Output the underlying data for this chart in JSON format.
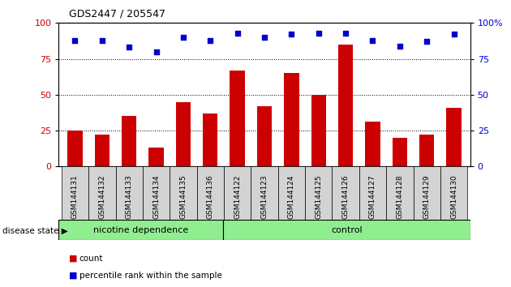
{
  "title": "GDS2447 / 205547",
  "categories": [
    "GSM144131",
    "GSM144132",
    "GSM144133",
    "GSM144134",
    "GSM144135",
    "GSM144136",
    "GSM144122",
    "GSM144123",
    "GSM144124",
    "GSM144125",
    "GSM144126",
    "GSM144127",
    "GSM144128",
    "GSM144129",
    "GSM144130"
  ],
  "counts": [
    25,
    22,
    35,
    13,
    45,
    37,
    67,
    42,
    65,
    50,
    85,
    31,
    20,
    22,
    41
  ],
  "percentiles": [
    88,
    88,
    83,
    80,
    90,
    88,
    93,
    90,
    92,
    93,
    93,
    88,
    84,
    87,
    92
  ],
  "groups": [
    {
      "label": "nicotine dependence",
      "start": 0,
      "end": 6,
      "color": "#90ee90"
    },
    {
      "label": "control",
      "start": 6,
      "end": 15,
      "color": "#90ee90"
    }
  ],
  "bar_color": "#cc0000",
  "dot_color": "#0000cc",
  "ylim": [
    0,
    100
  ],
  "yticks": [
    0,
    25,
    50,
    75,
    100
  ],
  "plot_bg": "#ffffff",
  "tick_bg": "#d3d3d3",
  "nd_count": 6,
  "total_count": 15
}
